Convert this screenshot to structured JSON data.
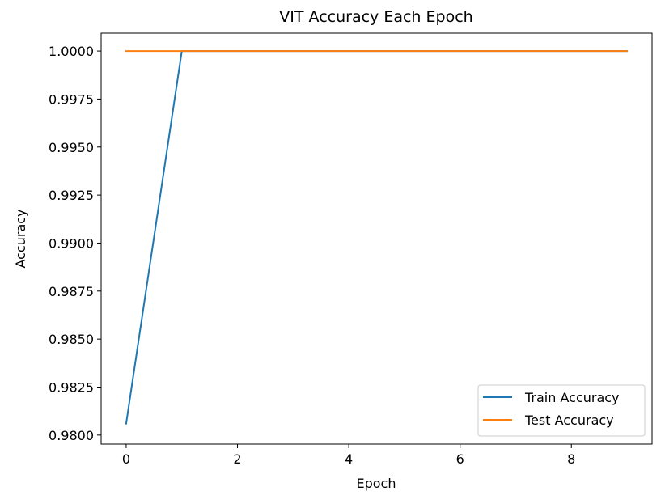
{
  "chart_data": {
    "type": "line",
    "title": "VIT Accuracy Each Epoch",
    "xlabel": "Epoch",
    "ylabel": "Accuracy",
    "x": [
      0,
      1,
      2,
      3,
      4,
      5,
      6,
      7,
      8,
      9
    ],
    "xlim": [
      -0.45,
      9.45
    ],
    "ylim": [
      0.97953,
      1.00093
    ],
    "xticks": [
      0,
      2,
      4,
      6,
      8
    ],
    "xtick_labels": [
      "0",
      "2",
      "4",
      "6",
      "8"
    ],
    "yticks": [
      0.98,
      0.9825,
      0.985,
      0.9875,
      0.99,
      0.9925,
      0.995,
      0.9975,
      1.0
    ],
    "ytick_labels": [
      "0.9800",
      "0.9825",
      "0.9850",
      "0.9875",
      "0.9900",
      "0.9925",
      "0.9950",
      "0.9975",
      "1.0000"
    ],
    "grid": false,
    "legend_position": "lower-right",
    "series": [
      {
        "name": "Train Accuracy",
        "color": "#1f77b4",
        "values": [
          0.9806,
          1.0,
          1.0,
          1.0,
          1.0,
          1.0,
          1.0,
          1.0,
          1.0,
          1.0
        ]
      },
      {
        "name": "Test Accuracy",
        "color": "#ff7f0e",
        "values": [
          1.0,
          1.0,
          1.0,
          1.0,
          1.0,
          1.0,
          1.0,
          1.0,
          1.0,
          1.0
        ]
      }
    ]
  }
}
